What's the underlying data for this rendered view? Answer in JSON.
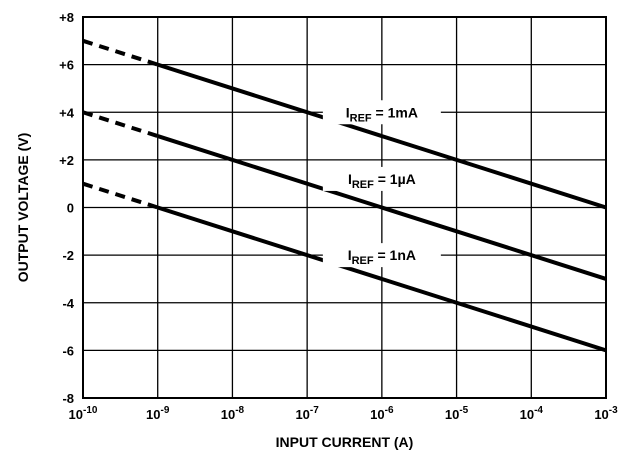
{
  "chart_data": {
    "type": "line",
    "xlabel": "INPUT CURRENT (A)",
    "ylabel": "OUTPUT VOLTAGE (V)",
    "x_scale": "log",
    "xlim": [
      1e-10,
      0.001
    ],
    "ylim": [
      -8,
      8
    ],
    "grid": true,
    "x_ticks": [
      {
        "value": 1e-10,
        "base": "10",
        "exp": "-10"
      },
      {
        "value": 1e-09,
        "base": "10",
        "exp": "-9"
      },
      {
        "value": 1e-08,
        "base": "10",
        "exp": "-8"
      },
      {
        "value": 1e-07,
        "base": "10",
        "exp": "-7"
      },
      {
        "value": 1e-06,
        "base": "10",
        "exp": "-6"
      },
      {
        "value": 1e-05,
        "base": "10",
        "exp": "-5"
      },
      {
        "value": 0.0001,
        "base": "10",
        "exp": "-4"
      },
      {
        "value": 0.001,
        "base": "10",
        "exp": "-3"
      }
    ],
    "y_ticks": [
      {
        "value": 8,
        "label": "+8"
      },
      {
        "value": 6,
        "label": "+6"
      },
      {
        "value": 4,
        "label": "+4"
      },
      {
        "value": 2,
        "label": "+2"
      },
      {
        "value": 0,
        "label": "0"
      },
      {
        "value": -2,
        "label": "-2"
      },
      {
        "value": -4,
        "label": "-4"
      },
      {
        "value": -6,
        "label": "-6"
      },
      {
        "value": -8,
        "label": "-8"
      }
    ],
    "series": [
      {
        "name": "IREF = 1mA",
        "label_main": "I",
        "label_sub": "REF",
        "label_rest": " = 1mA",
        "label_at": {
          "x": 1e-06,
          "y": 4
        },
        "dashed": {
          "x": [
            1e-10,
            1e-09
          ],
          "y": [
            7.0,
            6.0
          ]
        },
        "solid": {
          "x": [
            1e-09,
            0.001
          ],
          "y": [
            6.0,
            0.0
          ]
        }
      },
      {
        "name": "IREF = 1µA",
        "label_main": "I",
        "label_sub": "REF",
        "label_rest": " = 1µA",
        "label_at": {
          "x": 1e-06,
          "y": 1.2
        },
        "dashed": {
          "x": [
            1e-10,
            1e-09
          ],
          "y": [
            4.0,
            3.0
          ]
        },
        "solid": {
          "x": [
            1e-09,
            0.001
          ],
          "y": [
            3.0,
            -3.0
          ]
        }
      },
      {
        "name": "IREF = 1nA",
        "label_main": "I",
        "label_sub": "REF",
        "label_rest": " = 1nA",
        "label_at": {
          "x": 1e-06,
          "y": -2
        },
        "dashed": {
          "x": [
            1e-10,
            1e-09
          ],
          "y": [
            1.0,
            0.0
          ]
        },
        "solid": {
          "x": [
            1e-09,
            0.001
          ],
          "y": [
            0.0,
            -6.0
          ]
        }
      }
    ]
  }
}
